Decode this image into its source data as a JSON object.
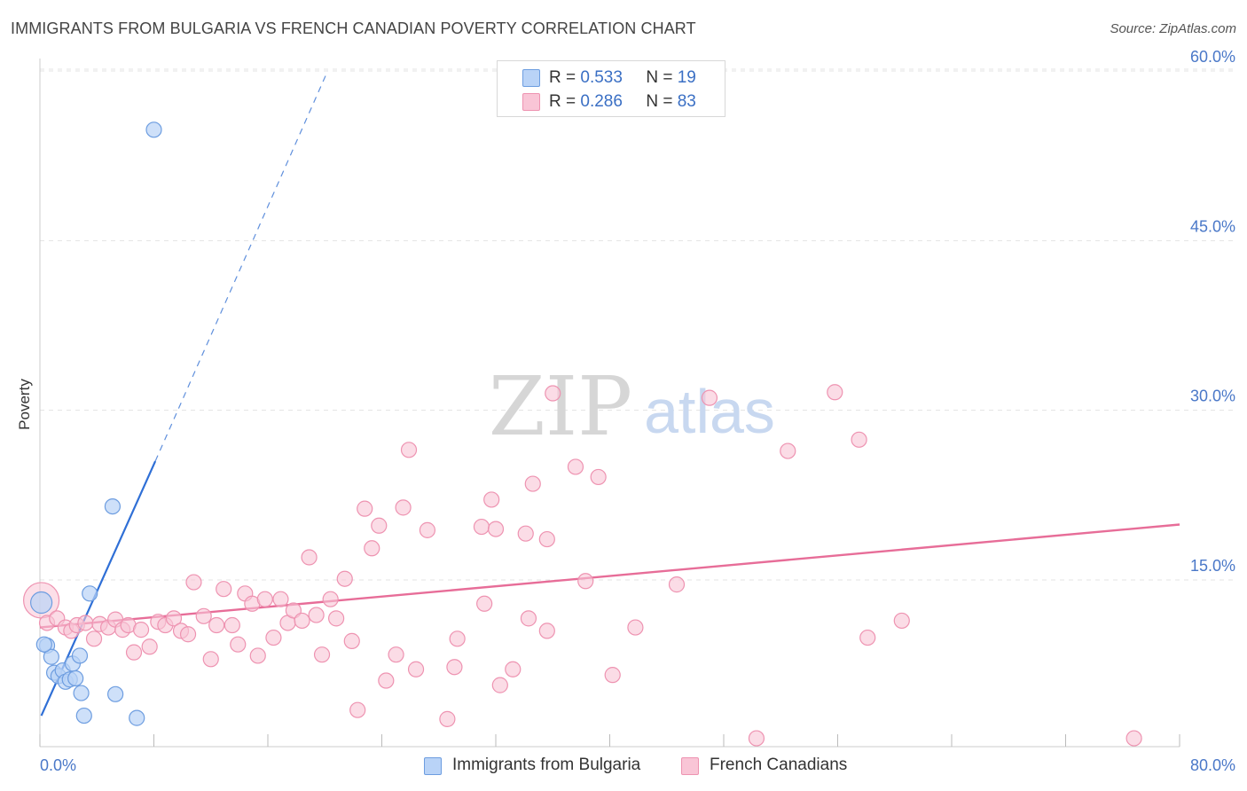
{
  "title": "IMMIGRANTS FROM BULGARIA VS FRENCH CANADIAN POVERTY CORRELATION CHART",
  "source": "Source: ZipAtlas.com",
  "legend": {
    "r_label": "R =",
    "n_label": "N =",
    "series": [
      {
        "r": "0.533",
        "n": "19"
      },
      {
        "r": "0.286",
        "n": "83"
      }
    ]
  },
  "colors": {
    "bulgaria_fill": "#b9d3f7",
    "bulgaria_stroke": "#6d9de0",
    "bulgaria_line": "#2f6fd6",
    "french_fill": "#f9c5d6",
    "french_stroke": "#ee93b1",
    "french_line": "#e76d98",
    "tick_text": "#4a78c8",
    "grid": "#e3e3e3"
  },
  "chart_data": {
    "type": "scatter",
    "title": "IMMIGRANTS FROM BULGARIA VS FRENCH CANADIAN POVERTY CORRELATION CHART",
    "xlabel": "",
    "ylabel": "Poverty",
    "xlim": [
      0,
      80
    ],
    "ylim": [
      0,
      63
    ],
    "x_tick_labels": [
      "0.0%",
      "80.0%"
    ],
    "y_ticks": [
      15,
      30,
      45,
      60
    ],
    "y_tick_labels": [
      "15.0%",
      "30.0%",
      "45.0%",
      "60.0%"
    ],
    "grid": true,
    "legend_position": "top-center",
    "watermark": "ZIPatlas",
    "series": [
      {
        "name": "Immigrants from Bulgaria",
        "r": 0.533,
        "n": 19,
        "trend": {
          "x0": 0.1,
          "y0": 3.0,
          "x1": 8.1,
          "y1": 25.5,
          "dashed_to": {
            "x": 20.2,
            "y": 60.0
          }
        },
        "points": [
          [
            0.1,
            13.0
          ],
          [
            0.5,
            9.2
          ],
          [
            0.8,
            8.2
          ],
          [
            1.0,
            6.8
          ],
          [
            1.3,
            6.5
          ],
          [
            1.6,
            7.0
          ],
          [
            1.8,
            6.0
          ],
          [
            2.1,
            6.2
          ],
          [
            2.3,
            7.6
          ],
          [
            2.5,
            6.3
          ],
          [
            2.8,
            8.3
          ],
          [
            2.9,
            5.0
          ],
          [
            3.1,
            3.0
          ],
          [
            3.5,
            13.8
          ],
          [
            5.1,
            21.5
          ],
          [
            5.3,
            4.9
          ],
          [
            6.8,
            2.8
          ],
          [
            8.0,
            54.8
          ],
          [
            0.3,
            9.3
          ]
        ]
      },
      {
        "name": "French Canadians",
        "r": 0.286,
        "n": 83,
        "trend": {
          "x0": 0.0,
          "y0": 10.8,
          "x1": 80.0,
          "y1": 19.9
        },
        "points": [
          [
            0.1,
            13.2
          ],
          [
            0.5,
            11.2
          ],
          [
            1.2,
            11.6
          ],
          [
            1.8,
            10.8
          ],
          [
            2.2,
            10.5
          ],
          [
            2.6,
            11.0
          ],
          [
            3.2,
            11.2
          ],
          [
            3.8,
            9.8
          ],
          [
            4.2,
            11.1
          ],
          [
            4.8,
            10.8
          ],
          [
            5.3,
            11.5
          ],
          [
            5.8,
            10.6
          ],
          [
            6.2,
            11.0
          ],
          [
            6.6,
            8.6
          ],
          [
            7.1,
            10.6
          ],
          [
            7.7,
            9.1
          ],
          [
            8.3,
            11.3
          ],
          [
            8.8,
            11.0
          ],
          [
            9.4,
            11.6
          ],
          [
            9.9,
            10.5
          ],
          [
            10.4,
            10.2
          ],
          [
            10.8,
            14.8
          ],
          [
            11.5,
            11.8
          ],
          [
            12.0,
            8.0
          ],
          [
            12.4,
            11.0
          ],
          [
            12.9,
            14.2
          ],
          [
            13.5,
            11.0
          ],
          [
            13.9,
            9.3
          ],
          [
            14.4,
            13.8
          ],
          [
            14.9,
            12.9
          ],
          [
            15.3,
            8.3
          ],
          [
            15.8,
            13.3
          ],
          [
            16.4,
            9.9
          ],
          [
            16.9,
            13.3
          ],
          [
            17.4,
            11.2
          ],
          [
            17.8,
            12.3
          ],
          [
            18.4,
            11.4
          ],
          [
            18.9,
            17.0
          ],
          [
            19.4,
            11.9
          ],
          [
            19.8,
            8.4
          ],
          [
            20.4,
            13.3
          ],
          [
            20.8,
            11.6
          ],
          [
            21.4,
            15.1
          ],
          [
            21.9,
            9.6
          ],
          [
            22.3,
            3.5
          ],
          [
            22.8,
            21.3
          ],
          [
            23.3,
            17.8
          ],
          [
            23.8,
            19.8
          ],
          [
            24.3,
            6.1
          ],
          [
            25.0,
            8.4
          ],
          [
            25.5,
            21.4
          ],
          [
            25.9,
            26.5
          ],
          [
            26.4,
            7.1
          ],
          [
            27.2,
            19.4
          ],
          [
            28.6,
            2.7
          ],
          [
            29.1,
            7.3
          ],
          [
            29.3,
            9.8
          ],
          [
            31.0,
            19.7
          ],
          [
            31.2,
            12.9
          ],
          [
            31.7,
            22.1
          ],
          [
            32.0,
            19.5
          ],
          [
            32.3,
            5.7
          ],
          [
            33.2,
            7.1
          ],
          [
            34.1,
            19.1
          ],
          [
            34.3,
            11.6
          ],
          [
            34.6,
            23.5
          ],
          [
            35.6,
            18.6
          ],
          [
            35.6,
            10.5
          ],
          [
            36.0,
            31.5
          ],
          [
            37.6,
            25.0
          ],
          [
            38.3,
            14.9
          ],
          [
            39.2,
            24.1
          ],
          [
            40.2,
            6.6
          ],
          [
            41.8,
            10.8
          ],
          [
            44.7,
            14.6
          ],
          [
            47.0,
            31.1
          ],
          [
            50.3,
            1.0
          ],
          [
            52.5,
            26.4
          ],
          [
            55.8,
            31.6
          ],
          [
            58.1,
            9.9
          ],
          [
            57.5,
            27.4
          ],
          [
            60.5,
            11.4
          ],
          [
            76.8,
            1.0
          ]
        ]
      }
    ]
  },
  "bottom_legend": [
    {
      "label": "Immigrants from Bulgaria"
    },
    {
      "label": "French Canadians"
    }
  ]
}
